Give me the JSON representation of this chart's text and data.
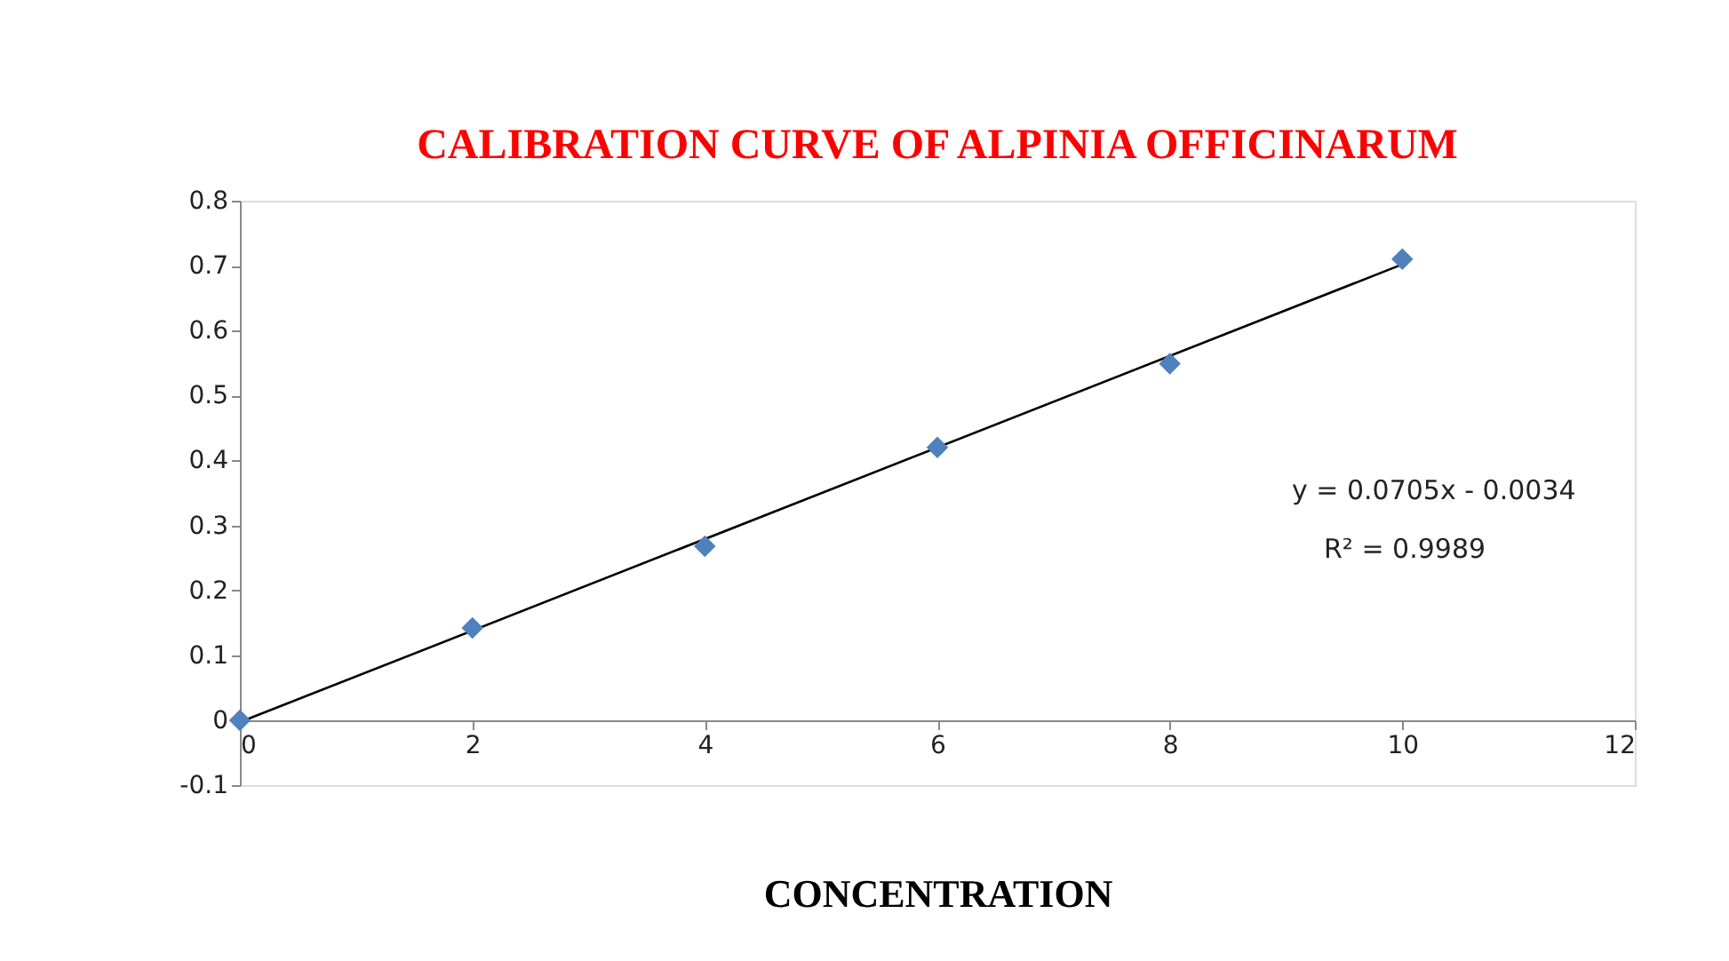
{
  "chart_data": {
    "type": "scatter",
    "title": "CALIBRATION CURVE OF ALPINIA OFFICINARUM",
    "xlabel": "CONCENTRATION",
    "x": [
      0,
      2,
      4,
      6,
      8,
      10
    ],
    "series": [
      {
        "color": "#4f81bd",
        "values": [
          0,
          0.142,
          0.268,
          0.42,
          0.549,
          0.71
        ],
        "marker": "diamond"
      },
      {
        "type": "line",
        "color": "#000000",
        "x": [
          0,
          10
        ],
        "values": [
          -0.003,
          0.702
        ],
        "line_style": "solid"
      }
    ],
    "xlim": [
      0,
      12
    ],
    "xticks": [
      0,
      2,
      4,
      6,
      8,
      10,
      12
    ],
    "ylim": [
      -0.1,
      0.8
    ],
    "yticks": [
      -0.1,
      0,
      0.1,
      0.2,
      0.3,
      0.4,
      0.5,
      0.6,
      0.7,
      0.8
    ],
    "annotations": [
      "y = 0.0705x - 0.0034",
      "R² = 0.9989"
    ],
    "grid": false
  }
}
